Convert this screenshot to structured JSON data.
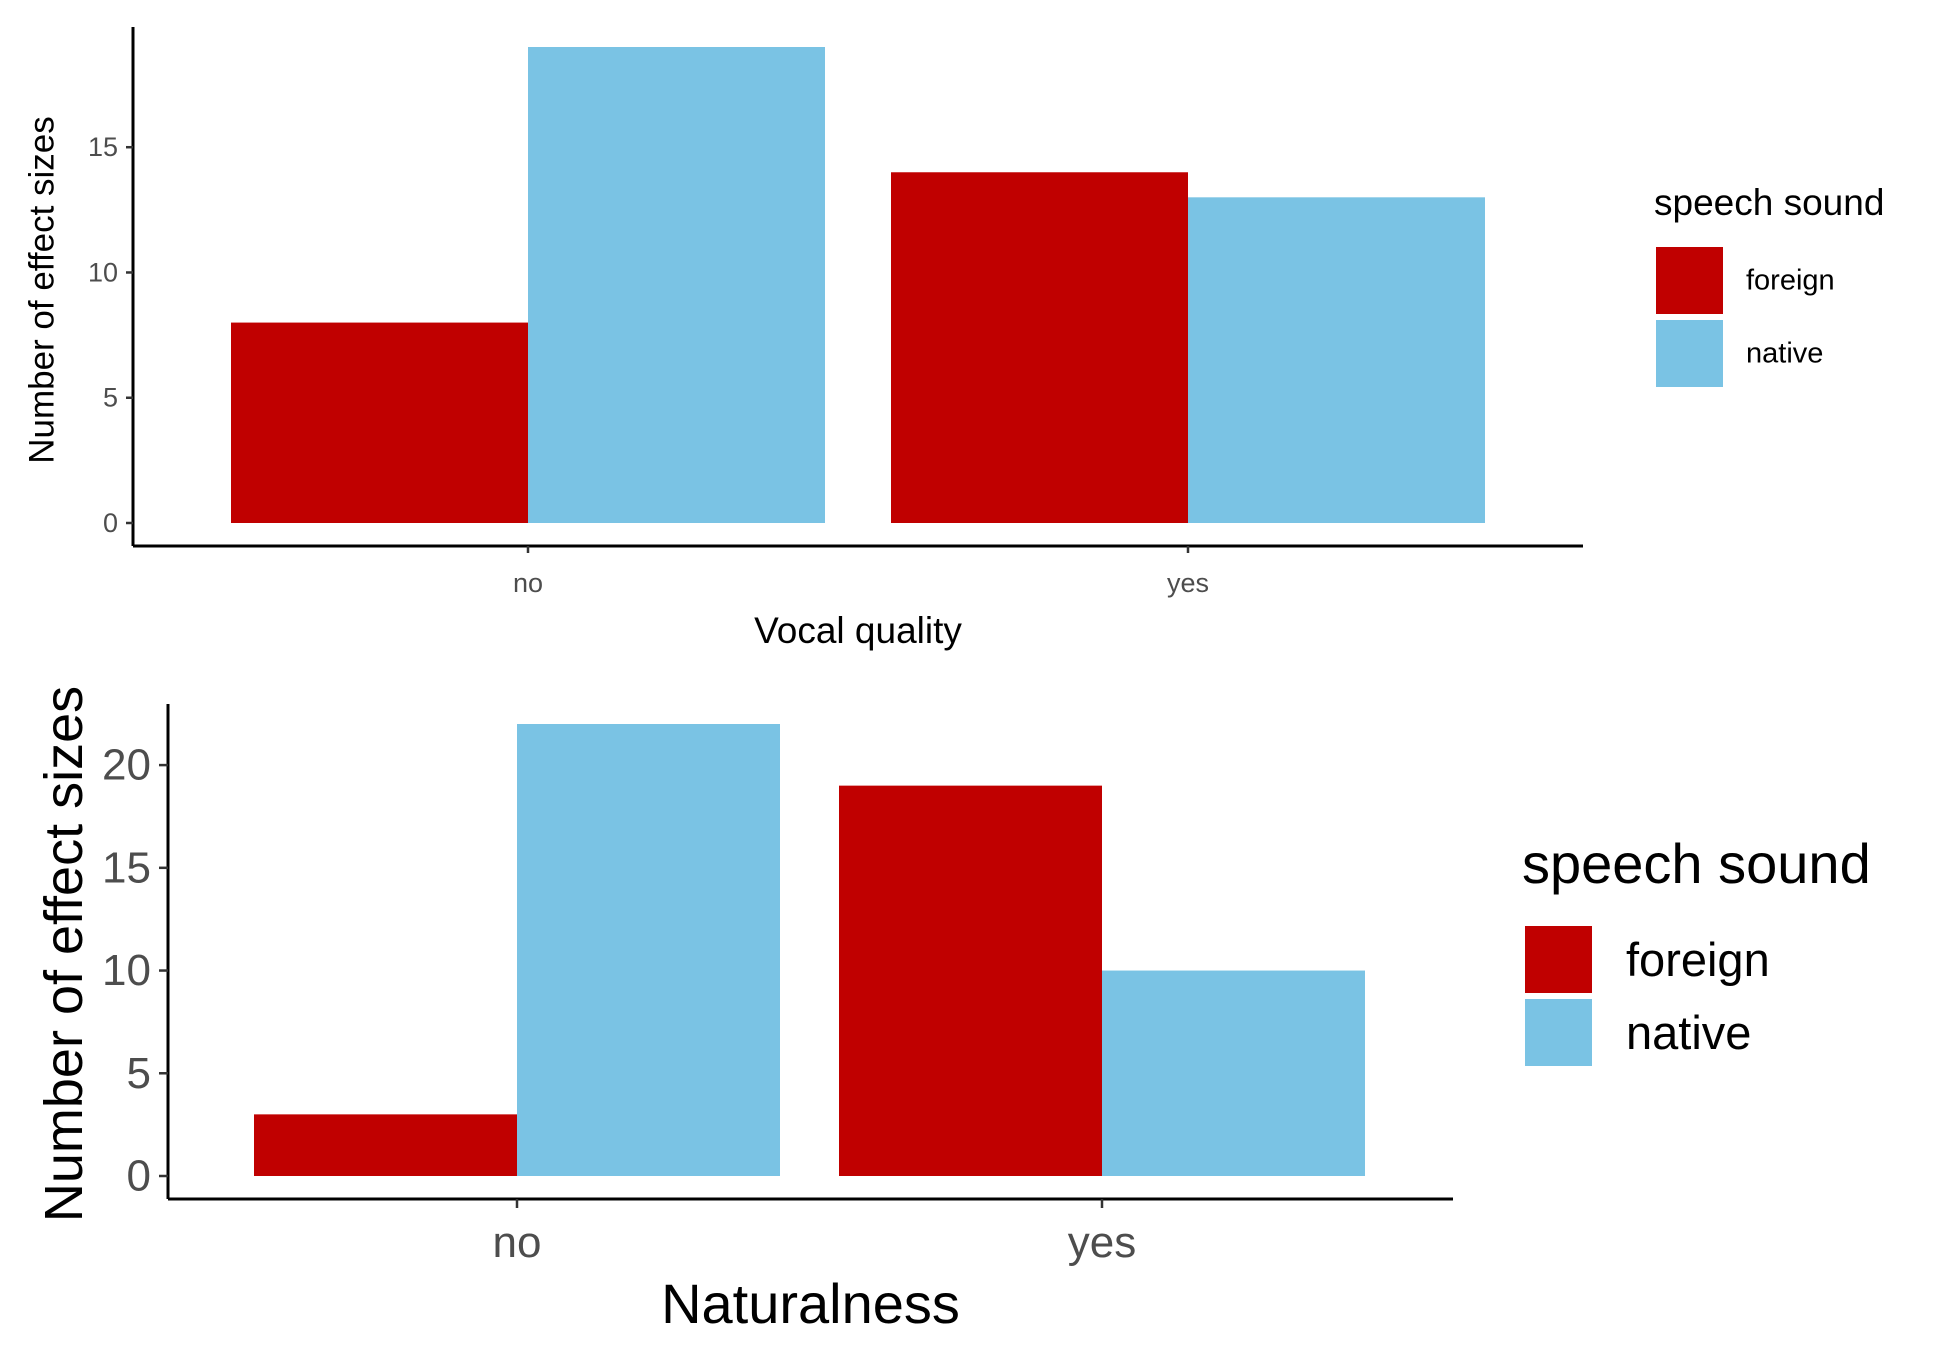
{
  "chart_data": [
    {
      "type": "bar",
      "categories": [
        "no",
        "yes"
      ],
      "series": [
        {
          "name": "foreign",
          "values": [
            8,
            14
          ],
          "color": "#C00000"
        },
        {
          "name": "native",
          "values": [
            19,
            13
          ],
          "color": "#7AC3E4"
        }
      ],
      "xlabel": "Vocal quality",
      "ylabel": "Number of effect sizes",
      "ylim": [
        0,
        19
      ],
      "yticks": [
        0,
        5,
        10,
        15
      ],
      "legend_title": "speech sound",
      "legend_position": "right",
      "grid": false
    },
    {
      "type": "bar",
      "categories": [
        "no",
        "yes"
      ],
      "series": [
        {
          "name": "foreign",
          "values": [
            3,
            19
          ],
          "color": "#C00000"
        },
        {
          "name": "native",
          "values": [
            22,
            10
          ],
          "color": "#7AC3E4"
        }
      ],
      "xlabel": "Naturalness",
      "ylabel": "Number of effect sizes",
      "ylim": [
        0,
        22
      ],
      "yticks": [
        0,
        5,
        10,
        15,
        20
      ],
      "legend_title": "speech sound",
      "legend_position": "right",
      "grid": false
    }
  ]
}
